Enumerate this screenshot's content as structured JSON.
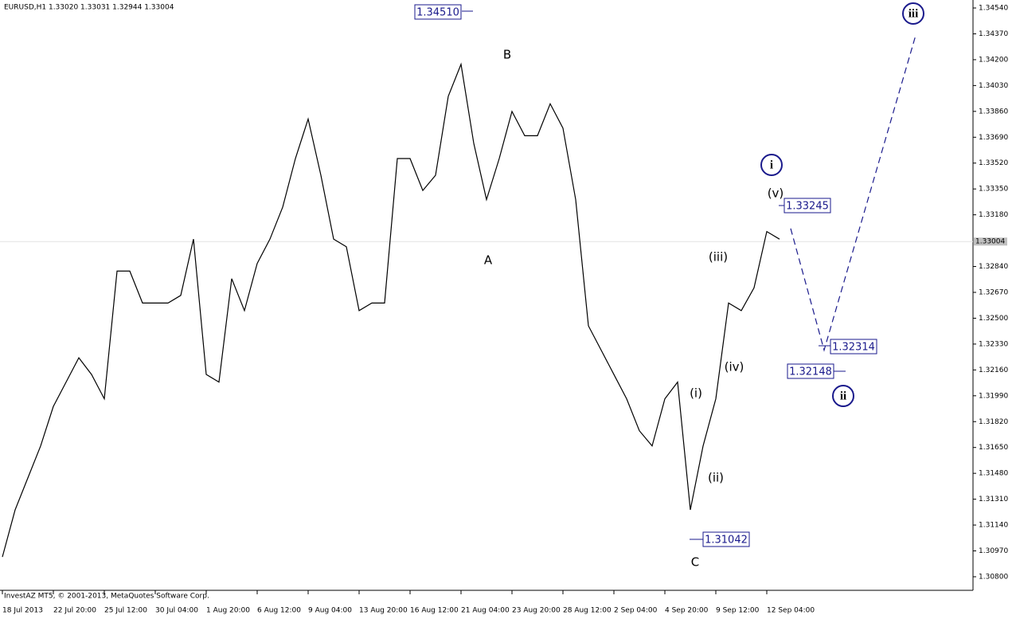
{
  "chart_data": {
    "type": "line",
    "title": "EURUSD,H1  1.33020 1.33031 1.32944 1.33004",
    "footer": "InvestAZ MT5, © 2001-2013, MetaQuotes Software Corp.",
    "categories": [
      "18 Jul 2013",
      null,
      null,
      null,
      "22 Jul 20:00",
      null,
      null,
      null,
      "25 Jul 12:00",
      null,
      null,
      null,
      "30 Jul 04:00",
      null,
      null,
      null,
      "1 Aug 20:00",
      null,
      null,
      null,
      "6 Aug 12:00",
      null,
      null,
      null,
      "9 Aug 04:00",
      null,
      null,
      null,
      "13 Aug 20:00",
      null,
      null,
      null,
      "16 Aug 12:00",
      null,
      null,
      null,
      "21 Aug 04:00",
      null,
      null,
      null,
      "23 Aug 20:00",
      null,
      null,
      null,
      "28 Aug 12:00",
      null,
      null,
      null,
      "2 Sep 04:00",
      null,
      null,
      null,
      "4 Sep 20:00",
      null,
      null,
      null,
      "9 Sep 12:00",
      null,
      null,
      null,
      "12 Sep 04:00",
      null
    ],
    "series": [
      {
        "color": "#000000",
        "values": [
          1.3093,
          1.3124,
          1.3145,
          1.3166,
          1.3192,
          1.3208,
          1.3224,
          1.3213,
          1.3197,
          1.3281,
          1.3281,
          1.326,
          1.326,
          1.326,
          1.3265,
          1.3302,
          1.3213,
          1.3208,
          1.3276,
          1.3255,
          1.3286,
          1.3302,
          1.3323,
          1.3355,
          1.3381,
          1.3344,
          1.3302,
          1.3297,
          1.3255,
          1.326,
          1.326,
          1.3355,
          1.3355,
          1.3334,
          1.3344,
          1.3396,
          1.3417,
          1.3365,
          1.3328,
          1.3355,
          1.3386,
          1.337,
          1.337,
          1.3391,
          1.3375,
          1.3328,
          1.3245,
          1.3229,
          1.3213,
          1.3197,
          1.3176,
          1.3166,
          1.3197,
          1.3208,
          1.3124,
          1.3166,
          1.3197,
          1.326,
          1.3255,
          1.327,
          1.3307,
          1.3302
        ]
      }
    ],
    "projection": {
      "color": "#1a1a8c",
      "values": [
        1.3309,
        1.3229,
        1.3436
      ]
    },
    "current_price": {
      "value": 1.33004,
      "label": "1.33004"
    },
    "ylim": [
      1.30716,
      1.34582
    ],
    "yticks": [
      {
        "value": 1.3454,
        "label": "1.34540"
      },
      {
        "value": 1.3437,
        "label": "1.34370"
      },
      {
        "value": 1.342,
        "label": "1.34200"
      },
      {
        "value": 1.3403,
        "label": "1.34030"
      },
      {
        "value": 1.3386,
        "label": "1.33860"
      },
      {
        "value": 1.3369,
        "label": "1.33690"
      },
      {
        "value": 1.3352,
        "label": "1.33520"
      },
      {
        "value": 1.3335,
        "label": "1.33350"
      },
      {
        "value": 1.3318,
        "label": "1.33180"
      },
      {
        "value": 1.3284,
        "label": "1.32840"
      },
      {
        "value": 1.3267,
        "label": "1.32670"
      },
      {
        "value": 1.325,
        "label": "1.32500"
      },
      {
        "value": 1.3233,
        "label": "1.32330"
      },
      {
        "value": 1.3216,
        "label": "1.32160"
      },
      {
        "value": 1.3199,
        "label": "1.31990"
      },
      {
        "value": 1.3182,
        "label": "1.31820"
      },
      {
        "value": 1.3165,
        "label": "1.31650"
      },
      {
        "value": 1.3148,
        "label": "1.31480"
      },
      {
        "value": 1.3131,
        "label": "1.31310"
      },
      {
        "value": 1.3114,
        "label": "1.31140"
      },
      {
        "value": 1.3097,
        "label": "1.30970"
      },
      {
        "value": 1.308,
        "label": "1.30800"
      }
    ],
    "price_labels": [
      "1.34510",
      "1.33245",
      "1.32314",
      "1.32148",
      "1.31042"
    ],
    "wave_labels": [
      {
        "text": "B",
        "color": "#dc143c",
        "circled": false
      },
      {
        "text": "A",
        "color": "#dc143c",
        "circled": false
      },
      {
        "text": "C",
        "color": "#dc143c",
        "circled": false
      },
      {
        "text": "i",
        "color": "#1a1a8c",
        "circled": true
      },
      {
        "text": "(v)",
        "color": "#2e8b8b",
        "circled": false
      },
      {
        "text": "(iii)",
        "color": "#2e8b8b",
        "circled": false
      },
      {
        "text": "(iv)",
        "color": "#2e8b8b",
        "circled": false
      },
      {
        "text": "(i)",
        "color": "#2e8b8b",
        "circled": false
      },
      {
        "text": "(ii)",
        "color": "#2e8b8b",
        "circled": false
      },
      {
        "text": "ii",
        "color": "#1a1a8c",
        "circled": true
      },
      {
        "text": "iii",
        "color": "#1a1a8c",
        "circled": true
      }
    ]
  }
}
